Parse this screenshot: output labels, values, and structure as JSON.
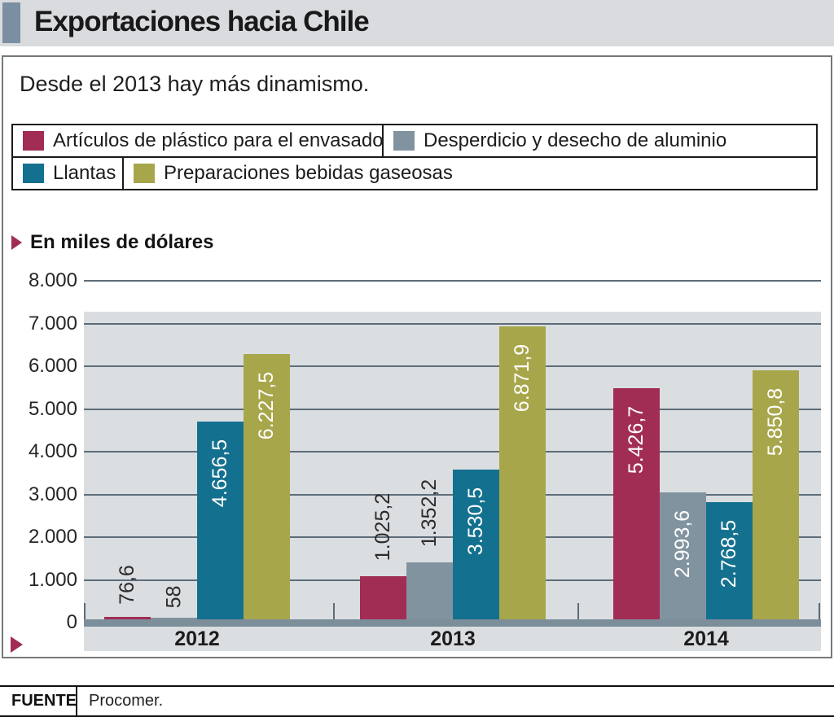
{
  "header": {
    "title": "Exportaciones hacia Chile"
  },
  "subtitle": "Desde el 2013 hay más dinamismo.",
  "axis_note": "En miles de dólares",
  "footer": {
    "label": "FUENTE",
    "source": "Procomer."
  },
  "colors": {
    "header_bg": "#d9dbde",
    "header_square": "#7a90a2",
    "accent_triangle": "#a12d55",
    "plot_bg": "#dadee1",
    "gridline": "#5d6c78",
    "baseline": "#7d8e9b"
  },
  "chart_data": {
    "type": "bar",
    "title": "Exportaciones hacia Chile",
    "subtitle": "Desde el 2013 hay más dinamismo.",
    "ylabel": "En miles de dólares",
    "categories": [
      "2012",
      "2013",
      "2014"
    ],
    "series": [
      {
        "name": "Artículos de plástico para el envasado",
        "color": "#a12d55",
        "values": [
          76.6,
          1025.2,
          5426.7
        ],
        "labels": [
          "76,6",
          "1.025,2",
          "5.426,7"
        ]
      },
      {
        "name": "Desperdicio y desecho de aluminio",
        "color": "#8293a0",
        "values": [
          58,
          1352.2,
          2993.6
        ],
        "labels": [
          "58",
          "1.352,2",
          "2.993,6"
        ]
      },
      {
        "name": "Llantas",
        "color": "#14708f",
        "values": [
          4656.5,
          3530.5,
          2768.5
        ],
        "labels": [
          "4.656,5",
          "3.530,5",
          "2.768,5"
        ]
      },
      {
        "name": "Preparaciones bebidas gaseosas",
        "color": "#a8a64b",
        "values": [
          6227.5,
          6871.9,
          5850.8
        ],
        "labels": [
          "6.227,5",
          "6.871,9",
          "5.850,8"
        ]
      }
    ],
    "ylim": [
      0,
      8000
    ],
    "ytick_step": 1000,
    "yticks": [
      "8.000",
      "7.000",
      "6.000",
      "5.000",
      "4.000",
      "3.000",
      "2.000",
      "1.000",
      "0"
    ],
    "grid": true,
    "legend_position": "top",
    "source": "Procomer."
  }
}
